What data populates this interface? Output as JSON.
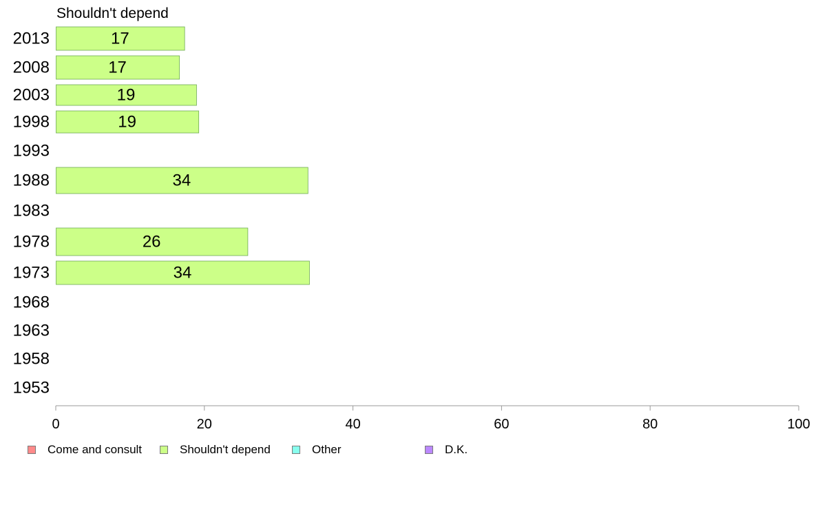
{
  "chart_data": {
    "type": "bar",
    "orientation": "horizontal",
    "title": "Shouldn't depend",
    "categories": [
      "2013",
      "2008",
      "2003",
      "1998",
      "1993",
      "1988",
      "1983",
      "1978",
      "1973",
      "1968",
      "1963",
      "1958",
      "1953"
    ],
    "series": [
      {
        "name": "Shouldn't depend",
        "color": "#ccff88",
        "values": [
          17.3,
          16.6,
          18.9,
          19.2,
          null,
          33.9,
          null,
          25.8,
          34.1,
          null,
          null,
          null,
          null
        ],
        "labels": [
          "17",
          "17",
          "19",
          "19",
          "",
          "34",
          "",
          "26",
          "34",
          "",
          "",
          "",
          ""
        ]
      }
    ],
    "xlim": [
      0,
      100
    ],
    "xticks": [
      "0",
      "20",
      "40",
      "60",
      "80",
      "100"
    ],
    "grid": false,
    "legend_placement": "bottom"
  },
  "legend": {
    "items": [
      {
        "label": "Come and consult",
        "color": "#ff8a8a"
      },
      {
        "label": "Shouldn't depend",
        "color": "#ccff88"
      },
      {
        "label": "Other",
        "color": "#88ffee"
      },
      {
        "label": "D.K.",
        "color": "#bb88ff"
      }
    ]
  }
}
